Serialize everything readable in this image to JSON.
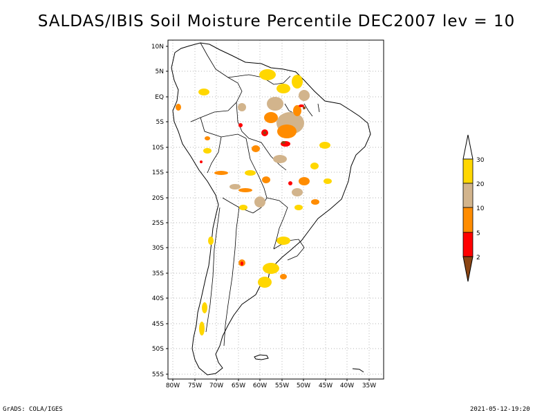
{
  "title": "SALDAS/IBIS Soil Moisture Percentile DEC2007 lev = 10",
  "map": {
    "lat_labels": [
      "10N",
      "5N",
      "EQ",
      "5S",
      "10S",
      "15S",
      "20S",
      "25S",
      "30S",
      "35S",
      "40S",
      "45S",
      "50S",
      "55S"
    ],
    "lon_labels": [
      "80W",
      "75W",
      "70W",
      "65W",
      "60W",
      "55W",
      "50W",
      "45W",
      "40W",
      "35W"
    ],
    "lon_range": [
      -80,
      -33
    ],
    "lat_range": [
      -56,
      11
    ]
  },
  "legend": {
    "levels": [
      "2",
      "5",
      "10",
      "20",
      "30"
    ],
    "colors": {
      "below_2": "#8B4513",
      "2_5": "#ff0000",
      "5_10": "#ff8c00",
      "10_20": "#d2b48c",
      "20_30": "#ffd700",
      "above_30": "#ffffff"
    }
  },
  "footer": {
    "left": "GrADS: COLA/IGES",
    "right": "2021-05-12-19:20"
  }
}
